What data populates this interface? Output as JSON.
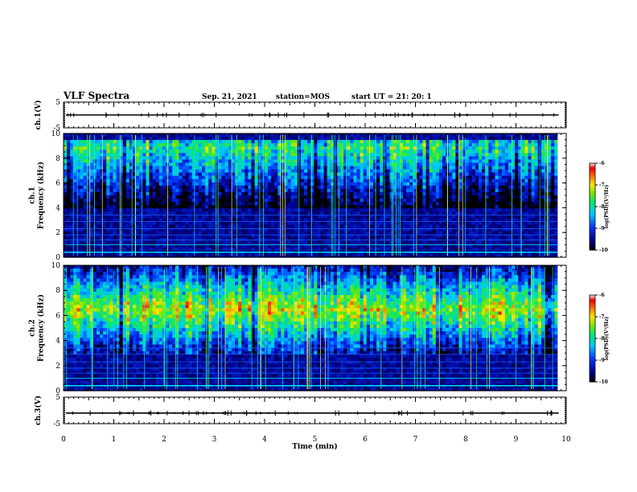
{
  "header": {
    "title": "VLF Spectra",
    "date": "Sep. 21, 2021",
    "station": "station=MOS",
    "start": "start  UT  =  21: 20: 1"
  },
  "chart_data": [
    {
      "type": "line",
      "name": "ch1-voltage",
      "ylabel": "ch.1(V)",
      "ylim": [
        -5,
        5
      ],
      "yticks": [
        5,
        -5
      ],
      "trace_level": 0
    },
    {
      "type": "heatmap",
      "name": "ch1-spectrogram",
      "ylabel": "ch.1\nFrequency (kHz)",
      "ylim": [
        0,
        10
      ],
      "yticks": [
        0,
        2,
        4,
        6,
        8,
        10
      ],
      "xlim": [
        0,
        9.83
      ],
      "band": {
        "low_kHz": 4,
        "high_kHz": 9.5,
        "peak_kHz": 8.8,
        "peak_level": -7.5
      },
      "colorbar": {
        "label": "log(PSD)(V²/Hz)",
        "range": [
          -10,
          -6
        ],
        "ticks": [
          -6,
          -7,
          -8,
          -9,
          -10
        ]
      }
    },
    {
      "type": "heatmap",
      "name": "ch2-spectrogram",
      "ylabel": "ch.2\nFrequency (kHz)",
      "ylim": [
        0,
        10
      ],
      "yticks": [
        0,
        2,
        4,
        6,
        8,
        10
      ],
      "xlim": [
        0,
        9.83
      ],
      "band": {
        "low_kHz": 3,
        "high_kHz": 10,
        "peak_kHz": 6.5,
        "peak_level": -6.8
      },
      "colorbar": {
        "label": "log(PSD)(V²/Hz)",
        "range": [
          -10,
          -6
        ],
        "ticks": [
          -6,
          -7,
          -8,
          -9,
          -10
        ]
      }
    },
    {
      "type": "line",
      "name": "ch3-voltage",
      "ylabel": "ch.3(V)",
      "ylim": [
        -5,
        5
      ],
      "yticks": [
        5,
        -5
      ],
      "trace_level": -1
    }
  ],
  "xaxis": {
    "label": "Time (min)",
    "range": [
      0,
      10
    ],
    "ticks": [
      0,
      1,
      2,
      3,
      4,
      5,
      6,
      7,
      8,
      9,
      10
    ]
  }
}
